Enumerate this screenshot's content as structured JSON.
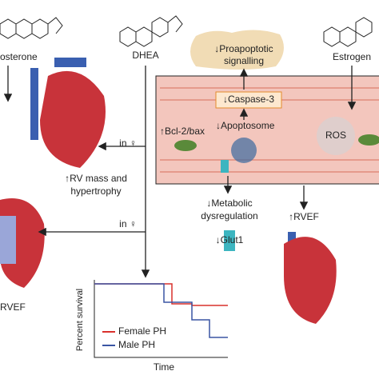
{
  "hormones": {
    "left": "osterone",
    "center": "DHEA",
    "right": "Estrogen"
  },
  "effects": {
    "proapoptotic": [
      "↓Proapoptotic",
      "signalling"
    ],
    "caspase": "↓Caspase-3",
    "bcl": "↑Bcl-2/bax",
    "apoptosome": "↓Apoptosome",
    "ros": "ROS",
    "rv_mass": [
      "↑RV mass and",
      "hypertrophy"
    ],
    "metabolic": [
      "↓Metabolic",
      "dysregulation"
    ],
    "glut1": "↓Glut1",
    "rvef_right": "↑RVEF",
    "rvef_left": "RVEF",
    "female_top": "in ♀",
    "female_bottom": "in ♀"
  },
  "survival_plot": {
    "y_label": "Percent survival",
    "x_label": "Time",
    "legend": [
      {
        "name": "Female PH",
        "color": "#d9302c"
      },
      {
        "name": "Male PH",
        "color": "#3a55a4"
      }
    ]
  }
}
